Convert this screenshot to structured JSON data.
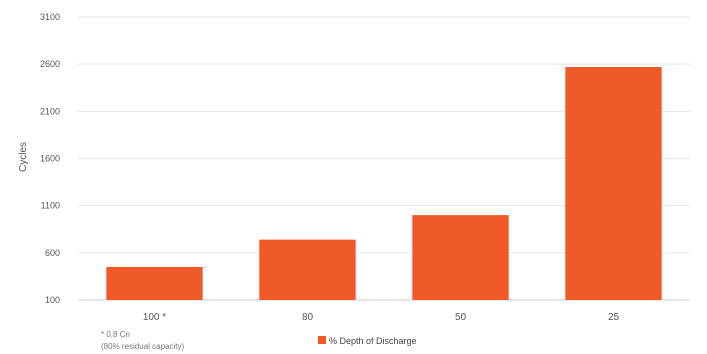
{
  "chart_data": {
    "type": "bar",
    "title": "",
    "xlabel": "",
    "ylabel": "Cycles",
    "categories": [
      "100 *",
      "80",
      "50",
      "25"
    ],
    "series": [
      {
        "name": "% Depth of Discharge",
        "values": [
          450,
          740,
          1000,
          2570
        ],
        "color": "#f05a28"
      }
    ],
    "ylim": [
      100,
      3100
    ],
    "yticks": [
      100,
      600,
      1100,
      1600,
      2100,
      2600,
      3100
    ],
    "grid": true,
    "legend_position": "bottom-center",
    "footnote_lines": [
      "* 0,8 Cn",
      "(80% residual capacity)"
    ],
    "colors": {
      "bar": "#f05a28",
      "grid": "#e6e6e6",
      "text": "#555555"
    }
  }
}
